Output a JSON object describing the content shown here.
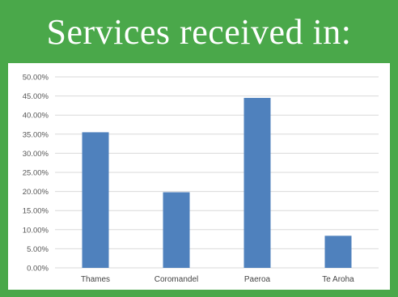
{
  "title": "Services received in:",
  "colors": {
    "frame": "#4aa84a",
    "bar": "#4f81bd",
    "grid": "#d9d9d9"
  },
  "chart_data": {
    "type": "bar",
    "categories": [
      "Thames",
      "Coromandel",
      "Paeroa",
      "Te Aroha"
    ],
    "values": [
      35.5,
      19.8,
      44.5,
      8.4
    ],
    "ylim": [
      0,
      50
    ],
    "yticks": [
      "0.00%",
      "5.00%",
      "10.00%",
      "15.00%",
      "20.00%",
      "25.00%",
      "30.00%",
      "35.00%",
      "40.00%",
      "45.00%",
      "50.00%"
    ],
    "grid": true,
    "legend": "none"
  }
}
